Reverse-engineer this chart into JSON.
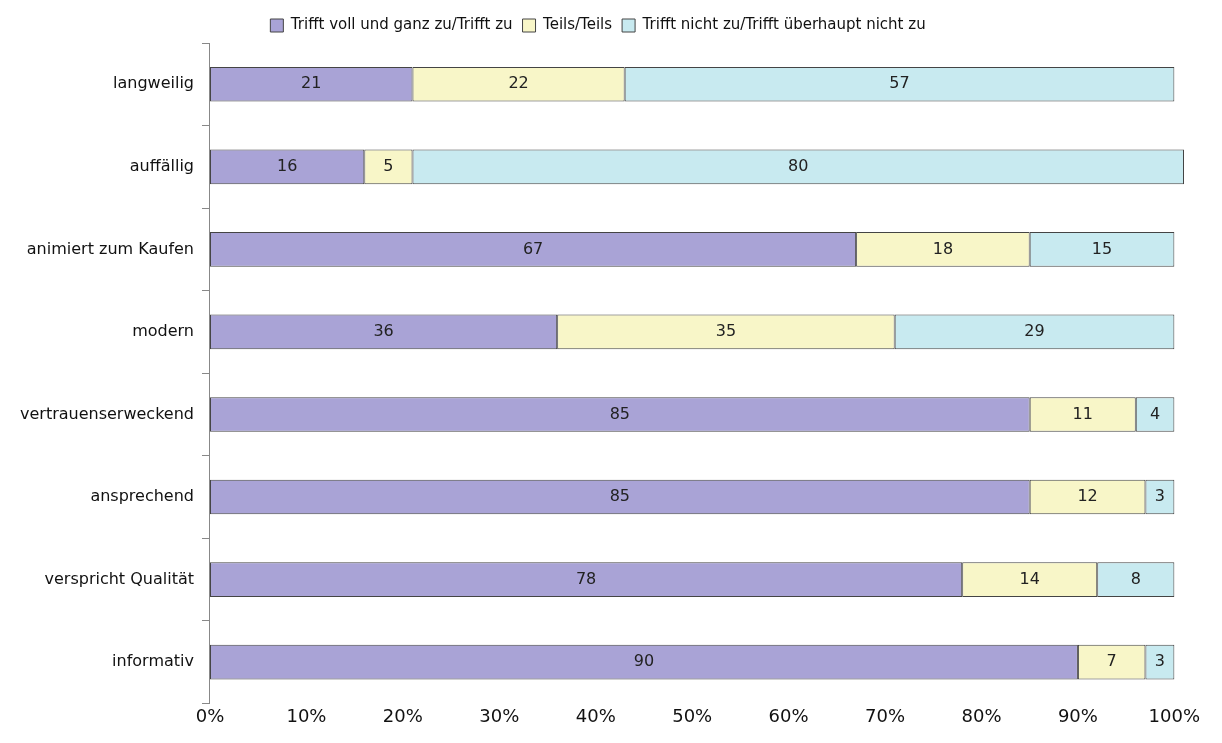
{
  "chart_data": {
    "type": "bar",
    "orientation": "horizontal",
    "stacked": true,
    "legend": "top",
    "grid": false,
    "categories": [
      "langweilig",
      "auffällig",
      "animiert zum Kaufen",
      "modern",
      "vertrauenserweckend",
      "ansprechend",
      "verspricht Qualität",
      "informativ"
    ],
    "xlim": [
      0,
      101
    ],
    "xticks": [
      {
        "value": 0,
        "label": "0%"
      },
      {
        "value": 10,
        "label": "10%"
      },
      {
        "value": 20,
        "label": "20%"
      },
      {
        "value": 30,
        "label": "30%"
      },
      {
        "value": 40,
        "label": "40%"
      },
      {
        "value": 50,
        "label": "50%"
      },
      {
        "value": 60,
        "label": "60%"
      },
      {
        "value": 70,
        "label": "70%"
      },
      {
        "value": 80,
        "label": "80%"
      },
      {
        "value": 90,
        "label": "90%"
      },
      {
        "value": 100,
        "label": "100%"
      }
    ],
    "series": [
      {
        "name": "Trifft voll und ganz zu/Trifft zu",
        "color": "#a9a3d6",
        "values": [
          21,
          16,
          67,
          36,
          85,
          85,
          78,
          90
        ],
        "value_labels": [
          "21",
          "16",
          "67",
          "36",
          "85",
          "85",
          "78",
          "90"
        ]
      },
      {
        "name": "Teils/Teils",
        "color": "#f8f6c8",
        "values": [
          22,
          5,
          18,
          35,
          11,
          12,
          14,
          7
        ],
        "value_labels": [
          "22",
          "5",
          "18",
          "35",
          "11",
          "12",
          "14",
          "7"
        ]
      },
      {
        "name": "Trifft nicht zu/Trifft überhaupt nicht zu",
        "color": "#c8eaf0",
        "values": [
          57,
          80,
          15,
          29,
          4,
          3,
          8,
          3
        ],
        "value_labels": [
          "57",
          "80",
          "15",
          "29",
          "4",
          "3",
          "8",
          "3"
        ]
      }
    ]
  }
}
